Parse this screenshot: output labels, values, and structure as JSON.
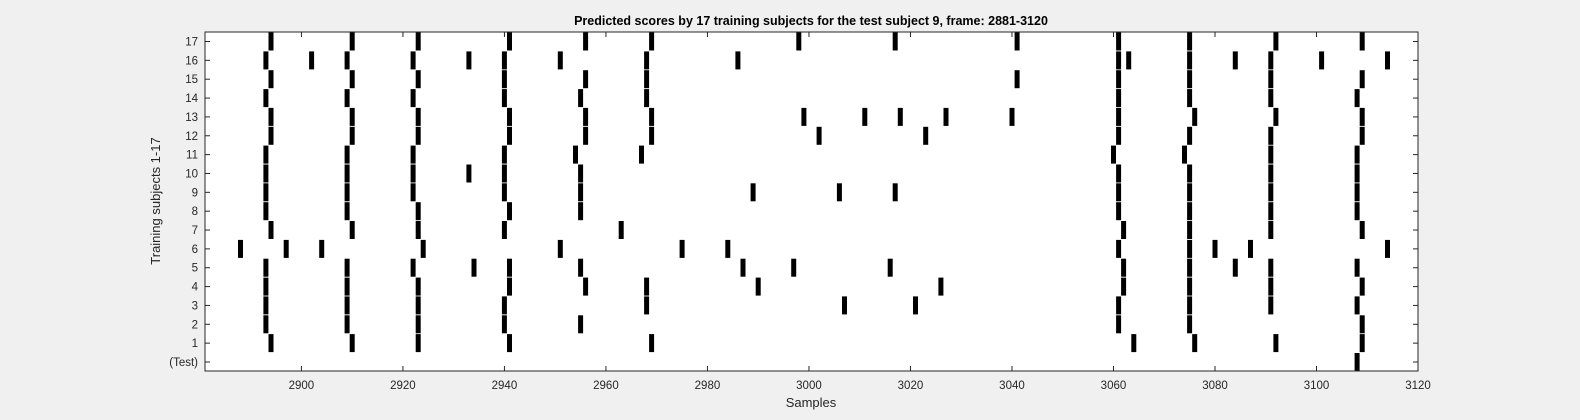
{
  "chart_data": {
    "type": "heatmap",
    "title": "Predicted scores by 17 training subjects for the test subject 9, frame: 2881-3120",
    "xlabel": "Samples",
    "ylabel": "Training subjects 1-17",
    "xlim": [
      2881,
      3120
    ],
    "xticks": [
      2900,
      2920,
      2940,
      2960,
      2980,
      3000,
      3020,
      3040,
      3060,
      3080,
      3100,
      3120
    ],
    "yticklabels": [
      "(Test)",
      "1",
      "2",
      "3",
      "4",
      "5",
      "6",
      "7",
      "8",
      "9",
      "10",
      "11",
      "12",
      "13",
      "14",
      "15",
      "16",
      "17"
    ],
    "grid": false,
    "colors": {
      "background": "#f0f0f0",
      "plot_bg": "#ffffff",
      "mark": "#000000",
      "text": "#262626"
    },
    "rows": [
      {
        "label": "(Test)",
        "marks": [
          3108
        ]
      },
      {
        "label": "1",
        "marks": [
          2894,
          2910,
          2923,
          2941,
          2969,
          3064,
          3076,
          3092,
          3109
        ]
      },
      {
        "label": "2",
        "marks": [
          2893,
          2909,
          2923,
          2940,
          2955,
          3061,
          3075,
          3109
        ]
      },
      {
        "label": "3",
        "marks": [
          2893,
          2909,
          2923,
          2940,
          2968,
          3007,
          3021,
          3061,
          3075,
          3091,
          3108
        ]
      },
      {
        "label": "4",
        "marks": [
          2893,
          2909,
          2923,
          2941,
          2956,
          2968,
          2990,
          3026,
          3062,
          3075,
          3091,
          3109
        ]
      },
      {
        "label": "5",
        "marks": [
          2893,
          2909,
          2922,
          2934,
          2941,
          2955,
          2987,
          2997,
          3016,
          3062,
          3075,
          3084,
          3091,
          3108
        ]
      },
      {
        "label": "6",
        "marks": [
          2888,
          2897,
          2904,
          2924,
          2951,
          2975,
          2984,
          3061,
          3075,
          3080,
          3087,
          3114
        ]
      },
      {
        "label": "7",
        "marks": [
          2894,
          2910,
          2923,
          2940,
          2963,
          3062,
          3075,
          3091,
          3109
        ]
      },
      {
        "label": "8",
        "marks": [
          2893,
          2909,
          2923,
          2941,
          2955,
          3061,
          3075,
          3091,
          3108
        ]
      },
      {
        "label": "9",
        "marks": [
          2893,
          2909,
          2922,
          2940,
          2955,
          2989,
          3006,
          3017,
          3061,
          3075,
          3091,
          3108
        ]
      },
      {
        "label": "10",
        "marks": [
          2893,
          2909,
          2922,
          2933,
          2940,
          2955,
          3061,
          3075,
          3091,
          3108
        ]
      },
      {
        "label": "11",
        "marks": [
          2893,
          2909,
          2922,
          2940,
          2954,
          2967,
          3060,
          3074,
          3091,
          3108
        ]
      },
      {
        "label": "12",
        "marks": [
          2894,
          2910,
          2923,
          2941,
          2956,
          2969,
          3002,
          3023,
          3061,
          3075,
          3091,
          3109
        ]
      },
      {
        "label": "13",
        "marks": [
          2894,
          2910,
          2923,
          2941,
          2956,
          2969,
          2999,
          3011,
          3018,
          3027,
          3040,
          3061,
          3076,
          3092,
          3109
        ]
      },
      {
        "label": "14",
        "marks": [
          2893,
          2909,
          2922,
          2940,
          2955,
          2968,
          3061,
          3075,
          3091,
          3108
        ]
      },
      {
        "label": "15",
        "marks": [
          2894,
          2910,
          2923,
          2940,
          2956,
          2968,
          3041,
          3061,
          3075,
          3091,
          3109
        ]
      },
      {
        "label": "16",
        "marks": [
          2893,
          2902,
          2909,
          2922,
          2933,
          2940,
          2951,
          2968,
          2986,
          3061,
          3063,
          3075,
          3084,
          3091,
          3101,
          3114
        ]
      },
      {
        "label": "17",
        "marks": [
          2894,
          2910,
          2923,
          2941,
          2956,
          2969,
          2998,
          3017,
          3041,
          3061,
          3075,
          3092,
          3109
        ]
      }
    ]
  }
}
